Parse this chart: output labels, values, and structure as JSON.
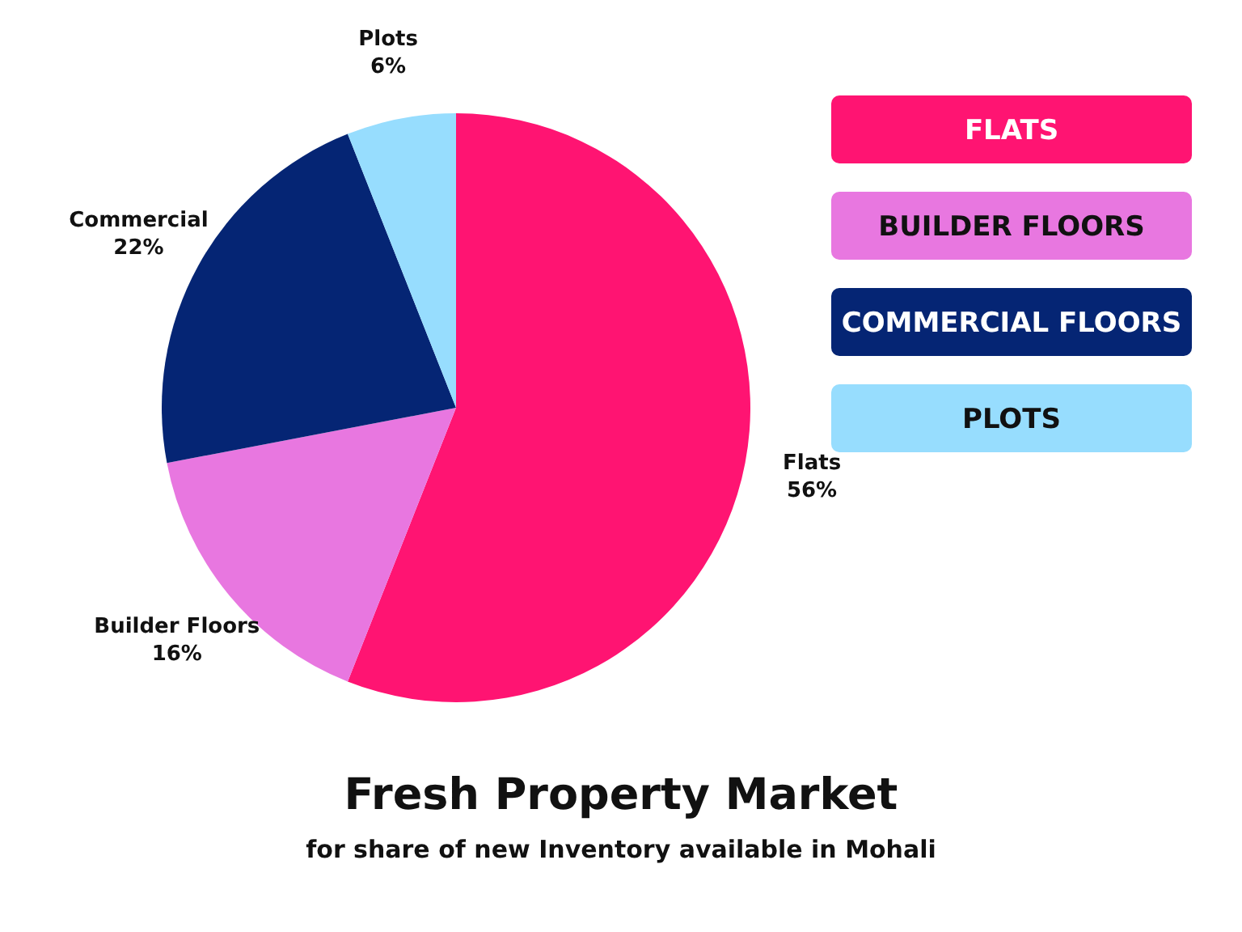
{
  "chart_data": {
    "type": "pie",
    "title": "Fresh Property Market",
    "subtitle": "for share of new Inventory available in Mohali",
    "categories": [
      "Flats",
      "Builder Floors",
      "Commercial",
      "Plots"
    ],
    "values": [
      56,
      16,
      22,
      6
    ],
    "value_labels": [
      "56%",
      "16%",
      "22%",
      "6%"
    ],
    "colors": [
      "#ff1472",
      "#e877e0",
      "#052574",
      "#97ddfe"
    ],
    "annotations": [
      "FLATS",
      "BUILDER FLOORS",
      "COMMERCIAL FLOORS",
      "PLOTS"
    ]
  }
}
